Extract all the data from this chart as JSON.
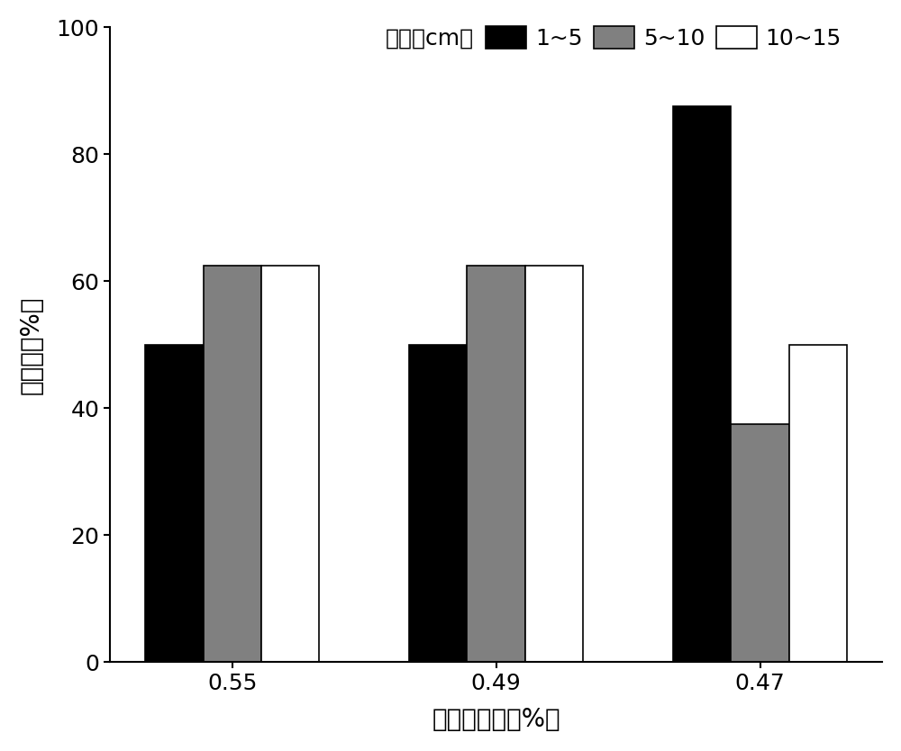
{
  "groups": [
    "0.55",
    "0.49",
    "0.47"
  ],
  "series": [
    {
      "label": "1~5",
      "color": "#000000",
      "edgecolor": "#000000",
      "values": [
        50,
        50,
        87.5
      ]
    },
    {
      "label": "5~10",
      "color": "#808080",
      "edgecolor": "#000000",
      "values": [
        62.5,
        62.5,
        37.5
      ]
    },
    {
      "label": "10~15",
      "color": "#ffffff",
      "edgecolor": "#000000",
      "values": [
        62.5,
        62.5,
        50
      ]
    }
  ],
  "legend_title": "水深（cm）",
  "xlabel": "土壤含盐量（%）",
  "ylabel": "萩发率（%）",
  "ylim": [
    0,
    100
  ],
  "yticks": [
    0,
    20,
    40,
    60,
    80,
    100
  ],
  "bar_width": 0.22,
  "axis_fontsize": 20,
  "tick_fontsize": 18,
  "legend_fontsize": 18,
  "background_color": "#ffffff"
}
